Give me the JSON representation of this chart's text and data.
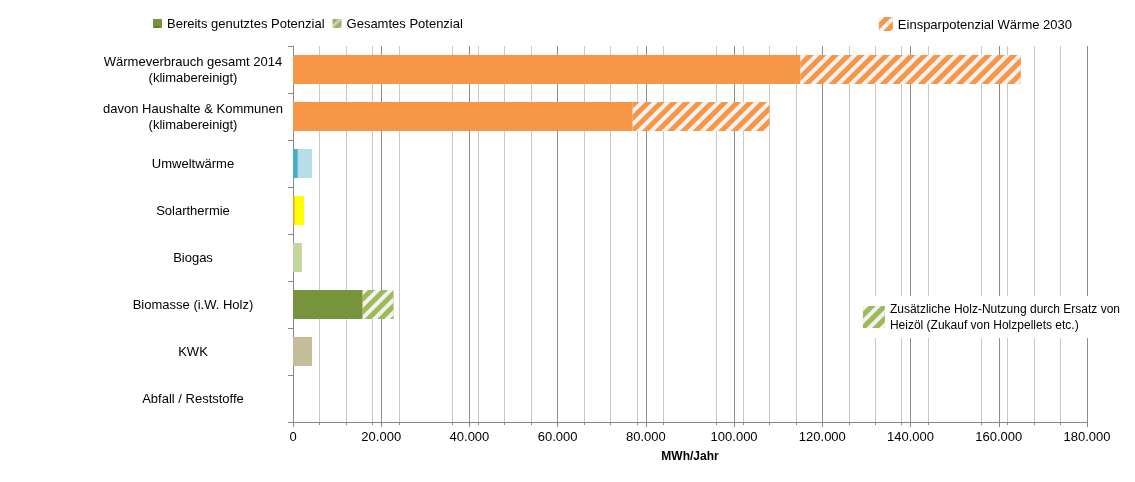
{
  "chart_data": {
    "type": "bar",
    "orientation": "horizontal",
    "stacked": true,
    "xlabel": "MWh/Jahr",
    "categories": [
      "Wärmeverbrauch gesamt 2014\n(klimabereinigt)",
      "davon Haushalte & Kommunen\n(klimabereinigt)",
      "Umweltwärme",
      "Solarthermie",
      "Biogas",
      "Biomasse (i.W. Holz)",
      "KWK",
      "Abfall / Reststoffe"
    ],
    "series": [
      {
        "color": "#f79646",
        "values": [
          115000,
          77000,
          null,
          null,
          null,
          null,
          null,
          null
        ]
      },
      {
        "name": "Bereits genutztes Potenzial",
        "color": "#77933c",
        "colors": [
          null,
          null,
          "#4bacc6",
          "#f7a21b",
          null,
          "#77933c",
          null,
          null
        ],
        "values": [
          null,
          null,
          1100,
          400,
          null,
          15800,
          null,
          null
        ]
      },
      {
        "name": "Gesamtes Potenzial",
        "color": "#c3d69b",
        "colors": [
          null,
          null,
          "#b7dee8",
          "#ffff00",
          "#c3d69b",
          null,
          "#c4bd97",
          null
        ],
        "values": [
          null,
          null,
          3200,
          2100,
          2000,
          null,
          4300,
          null
        ]
      },
      {
        "name": "Einsparpotenzial Wärme 2030",
        "color": "#f79646",
        "values": [
          50000,
          31000,
          null,
          null,
          null,
          null,
          null,
          null
        ]
      },
      {
        "name": "Zusätzliche Holz-Nutzung durch Ersatz von\nHeizöl (Zukauf von Holzpellets etc.)",
        "color": "#9bbb59",
        "values": [
          null,
          null,
          null,
          null,
          null,
          7000,
          null,
          null
        ]
      }
    ],
    "xlim": [
      0,
      180000
    ],
    "xticks": [
      0,
      {
        "value": 20000,
        "label": "20.000"
      },
      {
        "value": 40000,
        "label": "40.000"
      },
      {
        "value": 60000,
        "label": "60.000"
      },
      {
        "value": 80000,
        "label": "80.000"
      },
      {
        "value": 100000,
        "label": "100.000"
      },
      {
        "value": 120000,
        "label": "120.000"
      },
      {
        "value": 140000,
        "label": "140.000"
      },
      {
        "value": 160000,
        "label": "160.000"
      },
      {
        "value": 180000,
        "label": "180.000"
      }
    ],
    "grid": "x",
    "legend": "top"
  }
}
